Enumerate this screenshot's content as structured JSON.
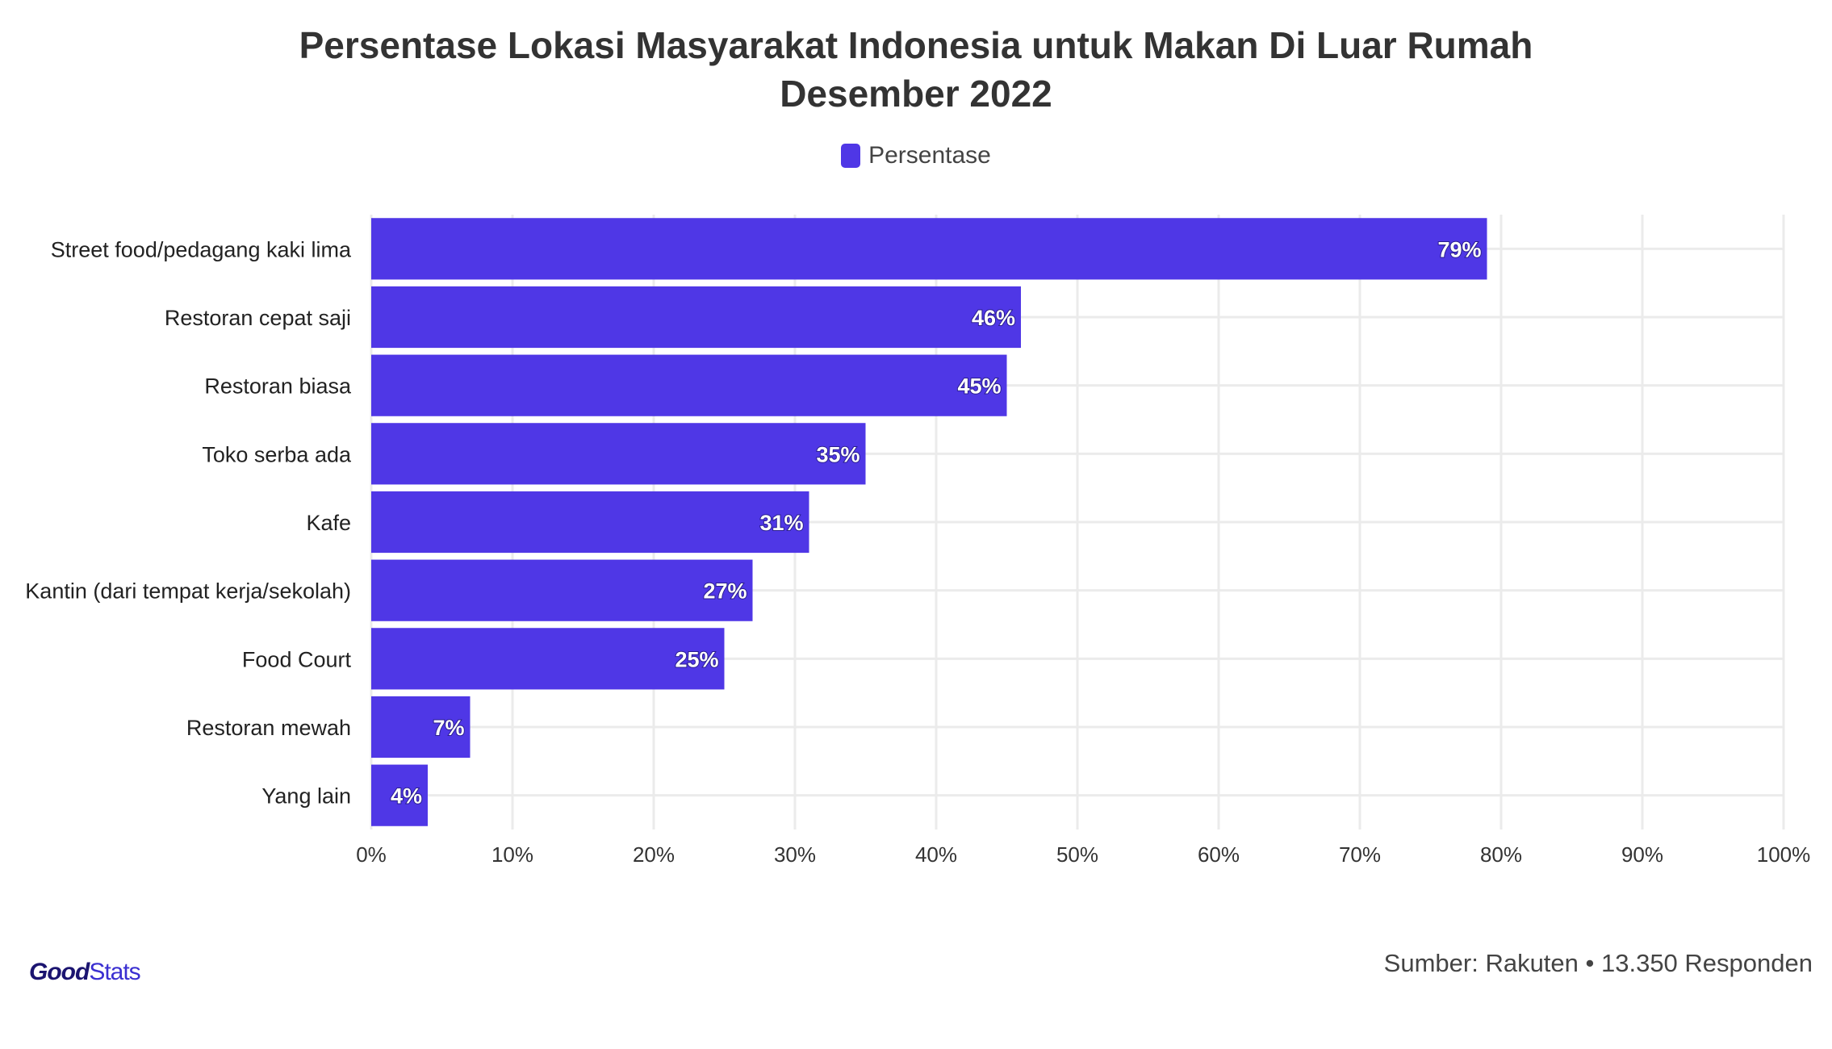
{
  "chart_data": {
    "type": "bar",
    "orientation": "horizontal",
    "title_lines": [
      "Persentase Lokasi Masyarakat Indonesia untuk Makan Di Luar Rumah",
      "Desember 2022"
    ],
    "legend": "top-center",
    "series": [
      {
        "name": "Persentase",
        "color": "#4f37e6",
        "values": [
          79,
          46,
          45,
          35,
          31,
          27,
          25,
          7,
          4
        ]
      }
    ],
    "categories": [
      "Street food/pedagang kaki lima",
      "Restoran cepat saji",
      "Restoran biasa",
      "Toko serba ada",
      "Kafe",
      "Kantin (dari tempat kerja/sekolah)",
      "Food Court",
      "Restoran mewah",
      "Yang lain"
    ],
    "data_labels": [
      "79%",
      "46%",
      "45%",
      "35%",
      "31%",
      "27%",
      "25%",
      "7%",
      "4%"
    ],
    "xlim": [
      0,
      100
    ],
    "x_ticks": [
      0,
      10,
      20,
      30,
      40,
      50,
      60,
      70,
      80,
      90,
      100
    ],
    "x_tick_labels": [
      "0%",
      "10%",
      "20%",
      "30%",
      "40%",
      "50%",
      "60%",
      "70%",
      "80%",
      "90%",
      "100%"
    ],
    "grid": true,
    "xlabel": "",
    "ylabel": ""
  },
  "footer": {
    "logo_good": "Good",
    "logo_stats": "Stats",
    "source": "Sumber: Rakuten • 13.350 Responden"
  },
  "colors": {
    "bar": "#4f37e6",
    "grid": "#ebebeb",
    "text": "#333333"
  }
}
